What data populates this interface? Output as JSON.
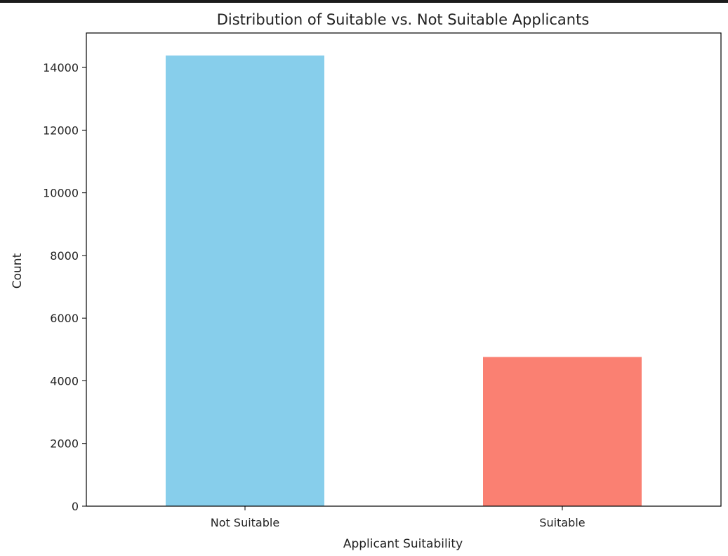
{
  "chart_data": {
    "type": "bar",
    "title": "Distribution of Suitable vs. Not Suitable Applicants",
    "xlabel": "Applicant Suitability",
    "ylabel": "Count",
    "categories": [
      "Not Suitable",
      "Suitable"
    ],
    "values": [
      14380,
      4760
    ],
    "colors": [
      "#87ceeb",
      "#fa8072"
    ],
    "ylim": [
      0,
      15100
    ],
    "yticks": [
      0,
      2000,
      4000,
      6000,
      8000,
      10000,
      12000,
      14000
    ],
    "ytick_labels": [
      "0",
      "2000",
      "4000",
      "6000",
      "8000",
      "10000",
      "12000",
      "14000"
    ],
    "grid": false,
    "legend": false
  }
}
